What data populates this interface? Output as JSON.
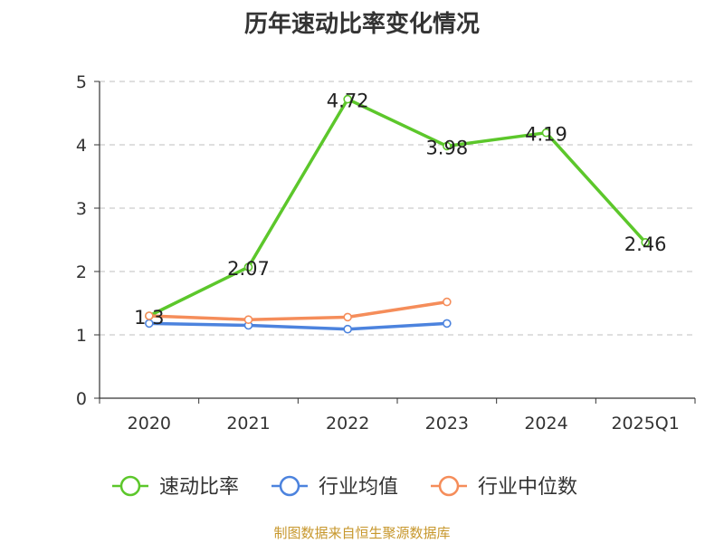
{
  "chart_data": {
    "type": "line",
    "title": "历年速动比率变化情况",
    "categories": [
      "2020",
      "2021",
      "2022",
      "2023",
      "2024",
      "2025Q1"
    ],
    "ylim": [
      0,
      5
    ],
    "yticks": [
      0,
      1,
      2,
      3,
      4,
      5
    ],
    "grid": true,
    "legend_position": "bottom",
    "series": [
      {
        "name": "速动比率",
        "color": "#5cc72b",
        "values": [
          1.3,
          2.07,
          4.72,
          3.98,
          4.19,
          2.46
        ],
        "show_labels": true
      },
      {
        "name": "行业均值",
        "color": "#4c83de",
        "values": [
          1.18,
          1.15,
          1.09,
          1.18,
          null,
          null
        ],
        "show_labels": false
      },
      {
        "name": "行业中位数",
        "color": "#f58d5a",
        "values": [
          1.3,
          1.24,
          1.28,
          1.52,
          null,
          null
        ],
        "show_labels": false
      }
    ]
  },
  "footer": {
    "source": "制图数据来自恒生聚源数据库"
  }
}
